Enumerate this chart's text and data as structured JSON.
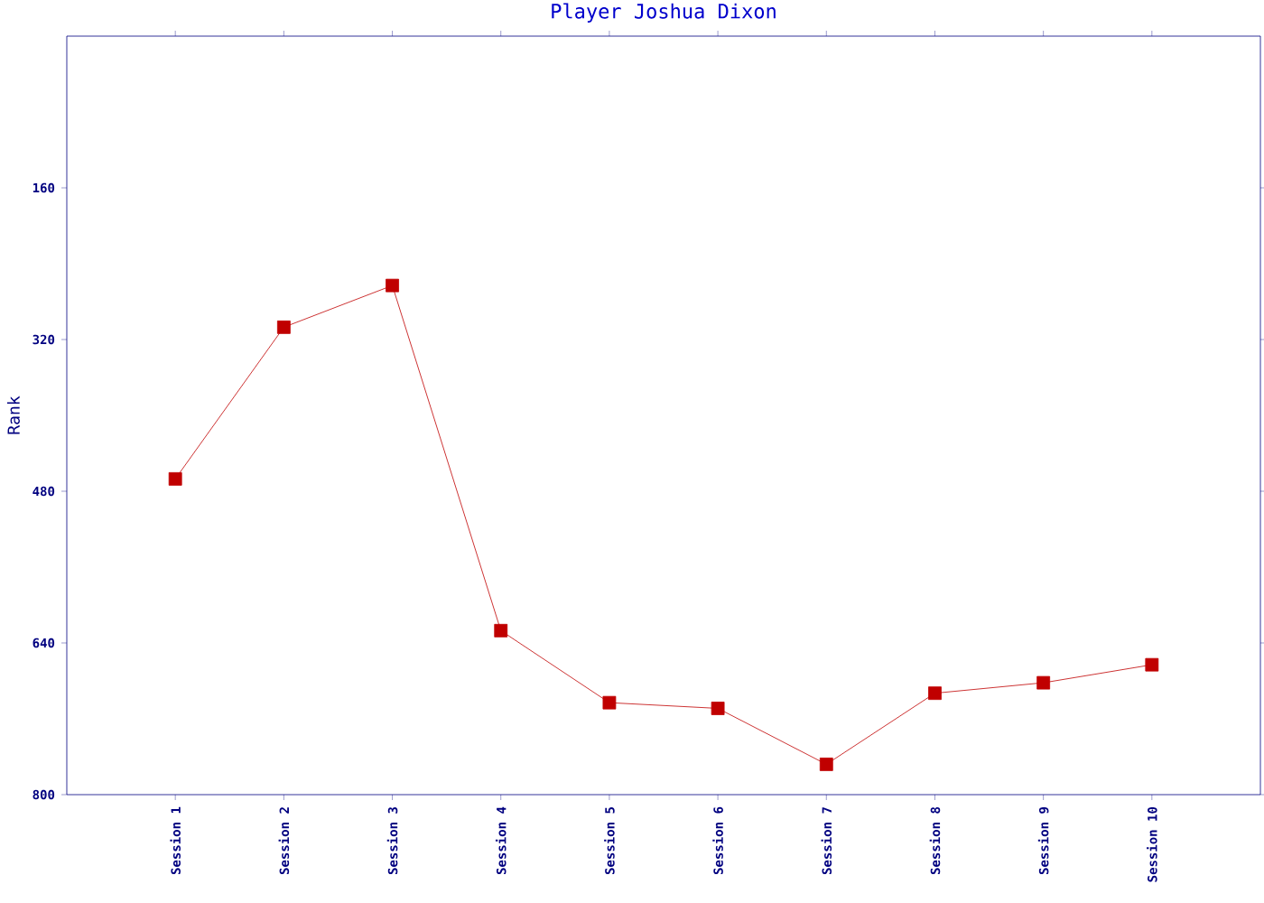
{
  "chart_data": {
    "type": "line",
    "title": "Player Joshua Dixon",
    "ylabel": "Rank",
    "categories": [
      "Session 1",
      "Session 2",
      "Session 3",
      "Session 4",
      "Session 5",
      "Session 6",
      "Session 7",
      "Session 8",
      "Session 9",
      "Session 10"
    ],
    "series": [
      {
        "color": "#c00000",
        "values": [
          467,
          307,
          263,
          627,
          703,
          709,
          768,
          693,
          682,
          663
        ]
      }
    ],
    "ylim": [
      800,
      0
    ],
    "yticks": [
      160,
      320,
      480,
      640,
      800
    ],
    "marker": "square",
    "line_style": "solid"
  }
}
